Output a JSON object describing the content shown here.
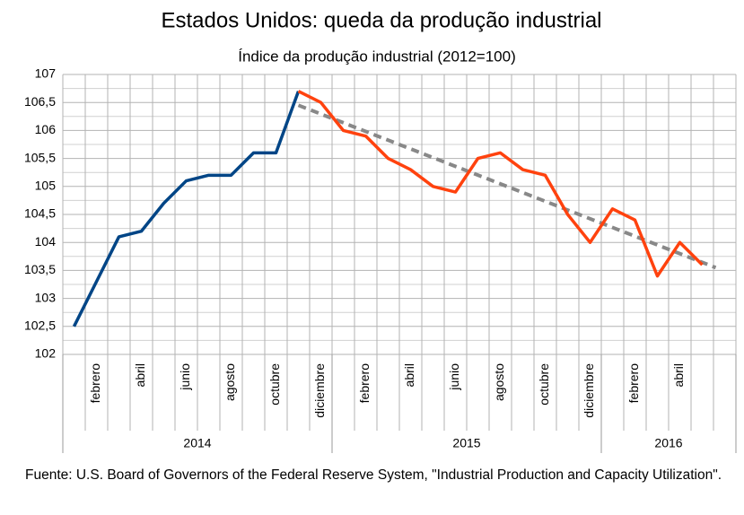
{
  "chart_data": {
    "type": "line",
    "title": "Estados Unidos: queda da produção industrial",
    "subtitle": "Índice da produção industrial   (2012=100)",
    "categories": [
      null,
      "febrero",
      null,
      "abril",
      null,
      "junio",
      null,
      "agosto",
      null,
      "octubre",
      null,
      "diciembre",
      null,
      "febrero",
      null,
      "abril",
      null,
      "junio",
      null,
      "agosto",
      null,
      "octubre",
      null,
      "diciembre",
      null,
      "febrero",
      null,
      "abril",
      null,
      null
    ],
    "groups": [
      {
        "label": "2014",
        "span": 12
      },
      {
        "label": "2015",
        "span": 12
      },
      {
        "label": "2016",
        "span": 6
      }
    ],
    "series": [
      {
        "color": "#004586",
        "values": [
          102.5,
          103.3,
          104.1,
          104.2,
          104.7,
          105.1,
          105.2,
          105.2,
          105.6,
          105.6,
          106.7,
          null,
          null,
          null,
          null,
          null,
          null,
          null,
          null,
          null,
          null,
          null,
          null,
          null,
          null,
          null,
          null,
          null,
          null,
          null
        ]
      },
      {
        "color": "#ff420e",
        "values": [
          null,
          null,
          null,
          null,
          null,
          null,
          null,
          null,
          null,
          null,
          106.7,
          106.5,
          106.0,
          105.9,
          105.5,
          105.3,
          105.0,
          104.9,
          105.5,
          105.6,
          105.3,
          105.2,
          104.5,
          104.0,
          104.6,
          104.4,
          103.4,
          104.0,
          103.6,
          null
        ]
      }
    ],
    "trend": {
      "color": "#888888",
      "start": 106.45,
      "end": 103.55
    },
    "ylim": [
      102,
      107
    ],
    "yticks": [
      102,
      {
        "value": 102.5,
        "label": "102,5"
      },
      103,
      {
        "value": 103.5,
        "label": "103,5"
      },
      104,
      {
        "value": 104.5,
        "label": "104,5"
      },
      105,
      {
        "value": 105.5,
        "label": "105,5"
      },
      106,
      {
        "value": 106.5,
        "label": "106,5"
      },
      107
    ],
    "grid": true,
    "source": "Fuente: U.S. Board of Governors of the Federal Reserve System, \"Industrial Production and Capacity Utilization\"."
  }
}
